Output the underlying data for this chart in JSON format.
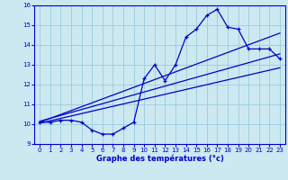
{
  "xlabel": "Graphe des températures (°c)",
  "xlim": [
    -0.5,
    23.5
  ],
  "ylim": [
    9,
    16
  ],
  "yticks": [
    9,
    10,
    11,
    12,
    13,
    14,
    15,
    16
  ],
  "xticks": [
    0,
    1,
    2,
    3,
    4,
    5,
    6,
    7,
    8,
    9,
    10,
    11,
    12,
    13,
    14,
    15,
    16,
    17,
    18,
    19,
    20,
    21,
    22,
    23
  ],
  "bg_color": "#cce8f0",
  "grid_color": "#99cce0",
  "line_color": "#0000cc",
  "curve_x": [
    0,
    1,
    2,
    3,
    4,
    5,
    6,
    7,
    8,
    9,
    10,
    11,
    12,
    13,
    14,
    15,
    16,
    17,
    18,
    19,
    20,
    21,
    22,
    23
  ],
  "curve_y": [
    10.1,
    10.1,
    10.2,
    10.2,
    10.1,
    9.7,
    9.5,
    9.5,
    9.8,
    10.1,
    12.3,
    13.0,
    12.2,
    13.0,
    14.4,
    14.8,
    15.5,
    15.8,
    14.9,
    14.8,
    13.8,
    13.8,
    13.8,
    13.3
  ],
  "trend1_x": [
    0,
    23
  ],
  "trend1_y": [
    10.15,
    13.55
  ],
  "trend2_x": [
    0,
    23
  ],
  "trend2_y": [
    10.1,
    14.6
  ],
  "trend3_x": [
    0,
    23
  ],
  "trend3_y": [
    10.05,
    12.85
  ]
}
